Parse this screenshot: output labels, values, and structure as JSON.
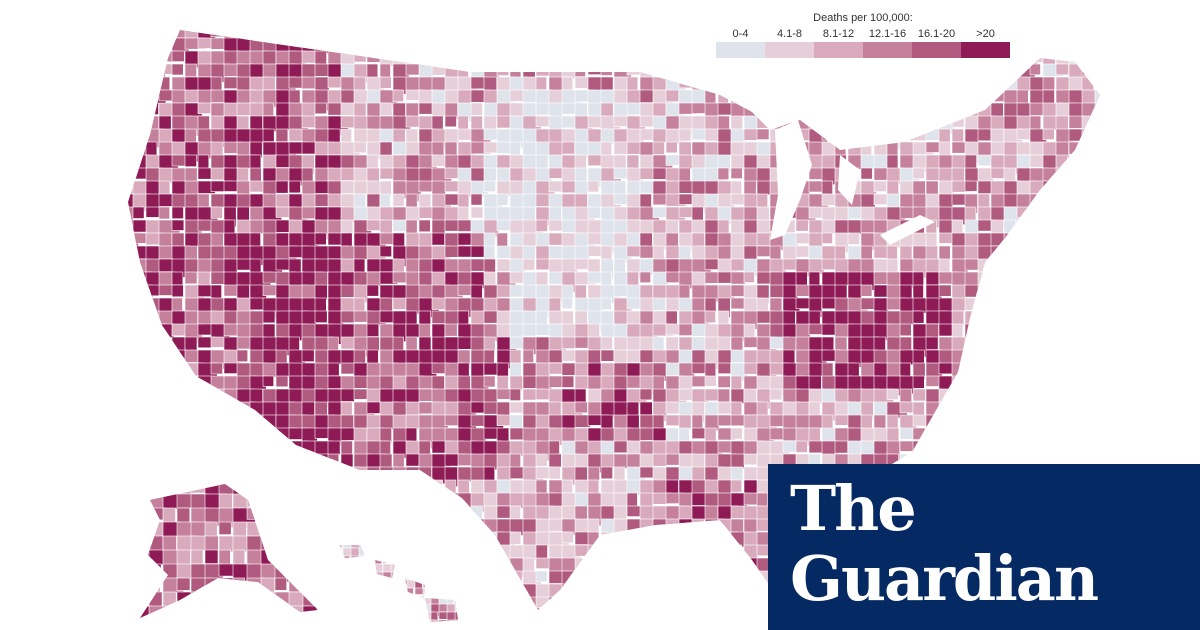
{
  "legend": {
    "title": "Deaths per 100,000:",
    "bins": [
      {
        "label": "0-4",
        "color": "#dfe3ec"
      },
      {
        "label": "4.1-8",
        "color": "#e6cfd9"
      },
      {
        "label": "8.1-12",
        "color": "#d8aabc"
      },
      {
        "label": "12.1-16",
        "color": "#c5819c"
      },
      {
        "label": "16.1-20",
        "color": "#b05a80"
      },
      {
        "label": ">20",
        "color": "#8e1a56"
      }
    ]
  },
  "brand": {
    "line1": "The",
    "line2": "Guardian",
    "background": "#052962",
    "text_color": "#ffffff"
  },
  "map": {
    "subject": "US counties choropleth",
    "border_color": "#ffffff",
    "regions_shown": [
      "contiguous-us",
      "alaska",
      "hawaii"
    ]
  }
}
